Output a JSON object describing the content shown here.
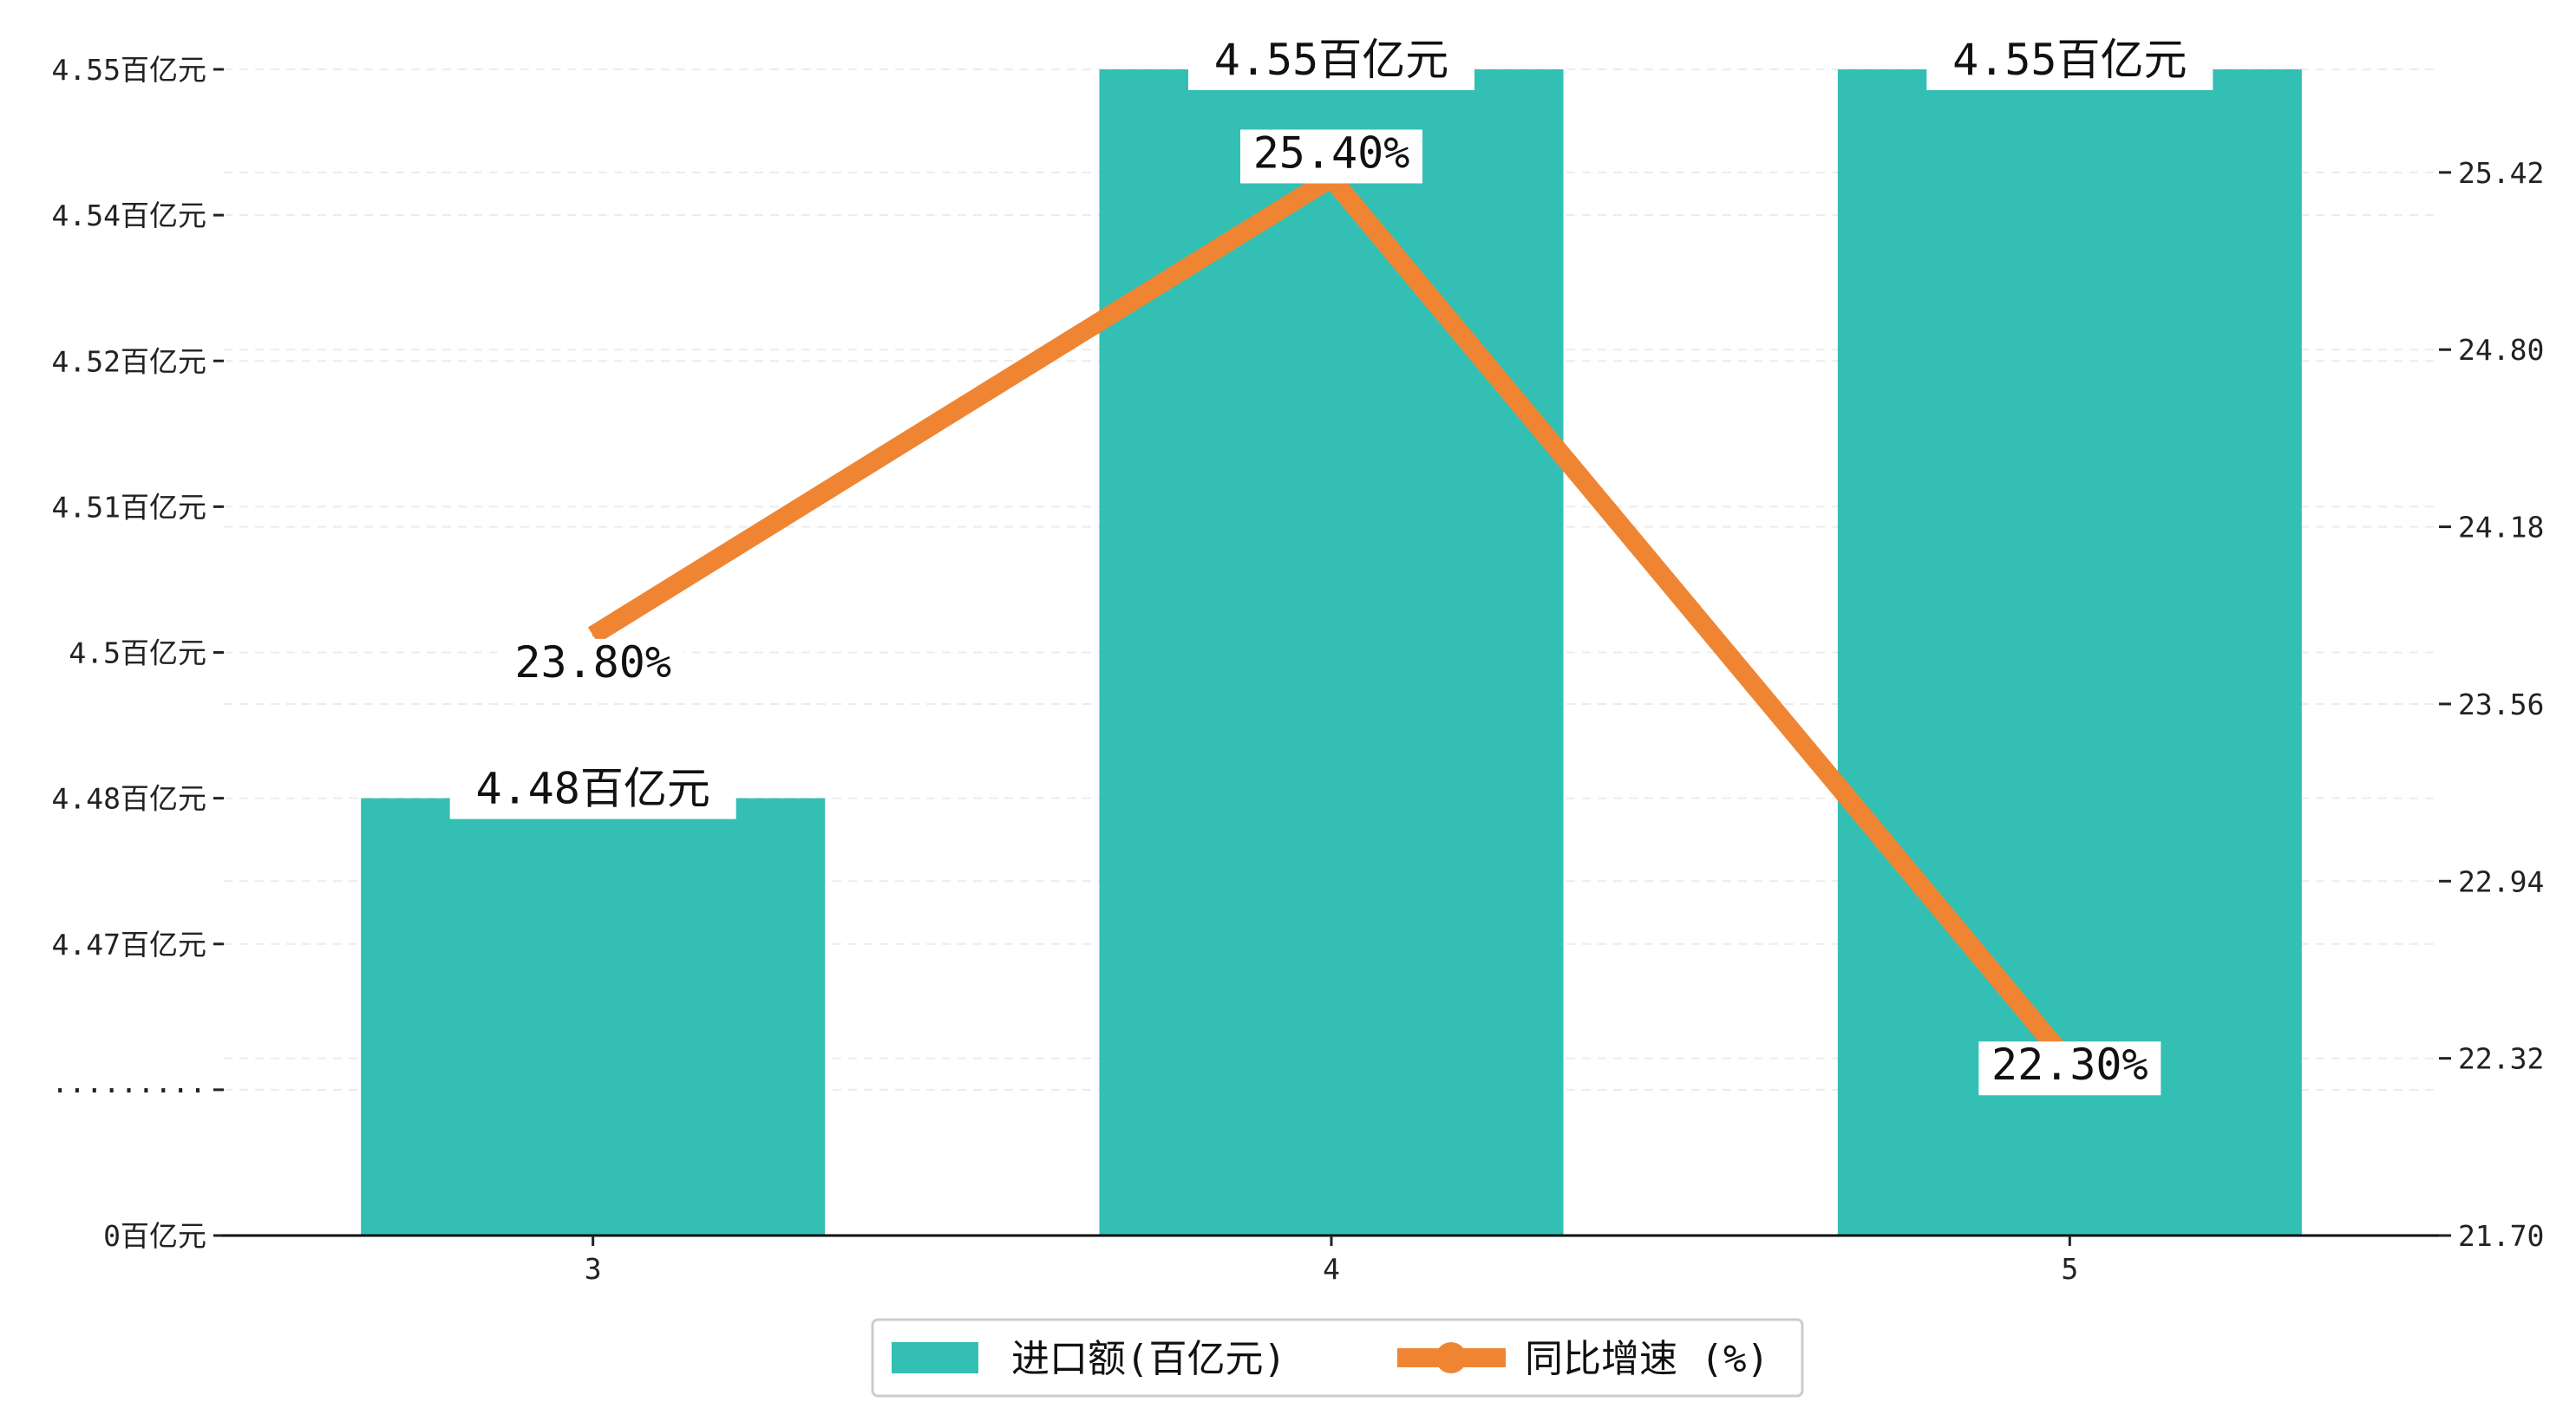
{
  "chart_data": {
    "type": "bar",
    "categories": [
      "3",
      "4",
      "5"
    ],
    "series": [
      {
        "name": "进口额(百亿元)",
        "type": "bar",
        "axis": "left",
        "values": [
          4.48,
          4.55,
          4.55
        ],
        "labels": [
          "4.48百亿元",
          "4.55百亿元",
          "4.55百亿元"
        ],
        "color": "#33bfb4"
      },
      {
        "name": "同比增速 (%)",
        "type": "line",
        "axis": "right",
        "values": [
          23.8,
          25.4,
          22.3
        ],
        "labels": [
          "23.80%",
          "25.40%",
          "22.30%"
        ],
        "color": "#ef8532"
      }
    ],
    "left_axis": {
      "broken": true,
      "break_marker": "·········",
      "ticks": [
        {
          "value": 0,
          "label": "0百亿元"
        },
        {
          "value": 4.47,
          "label": "4.47百亿元"
        },
        {
          "value": 4.48,
          "label": "4.48百亿元"
        },
        {
          "value": 4.5,
          "label": "4.5百亿元"
        },
        {
          "value": 4.51,
          "label": "4.51百亿元"
        },
        {
          "value": 4.52,
          "label": "4.52百亿元"
        },
        {
          "value": 4.54,
          "label": "4.54百亿元"
        },
        {
          "value": 4.55,
          "label": "4.55百亿元"
        }
      ]
    },
    "right_axis": {
      "ylim": [
        21.7,
        25.72
      ],
      "ticks": [
        "21.70",
        "22.32",
        "22.94",
        "23.56",
        "24.18",
        "24.80",
        "25.42"
      ]
    },
    "grid": "horizontal-dashed",
    "legend_position": "bottom-center"
  }
}
